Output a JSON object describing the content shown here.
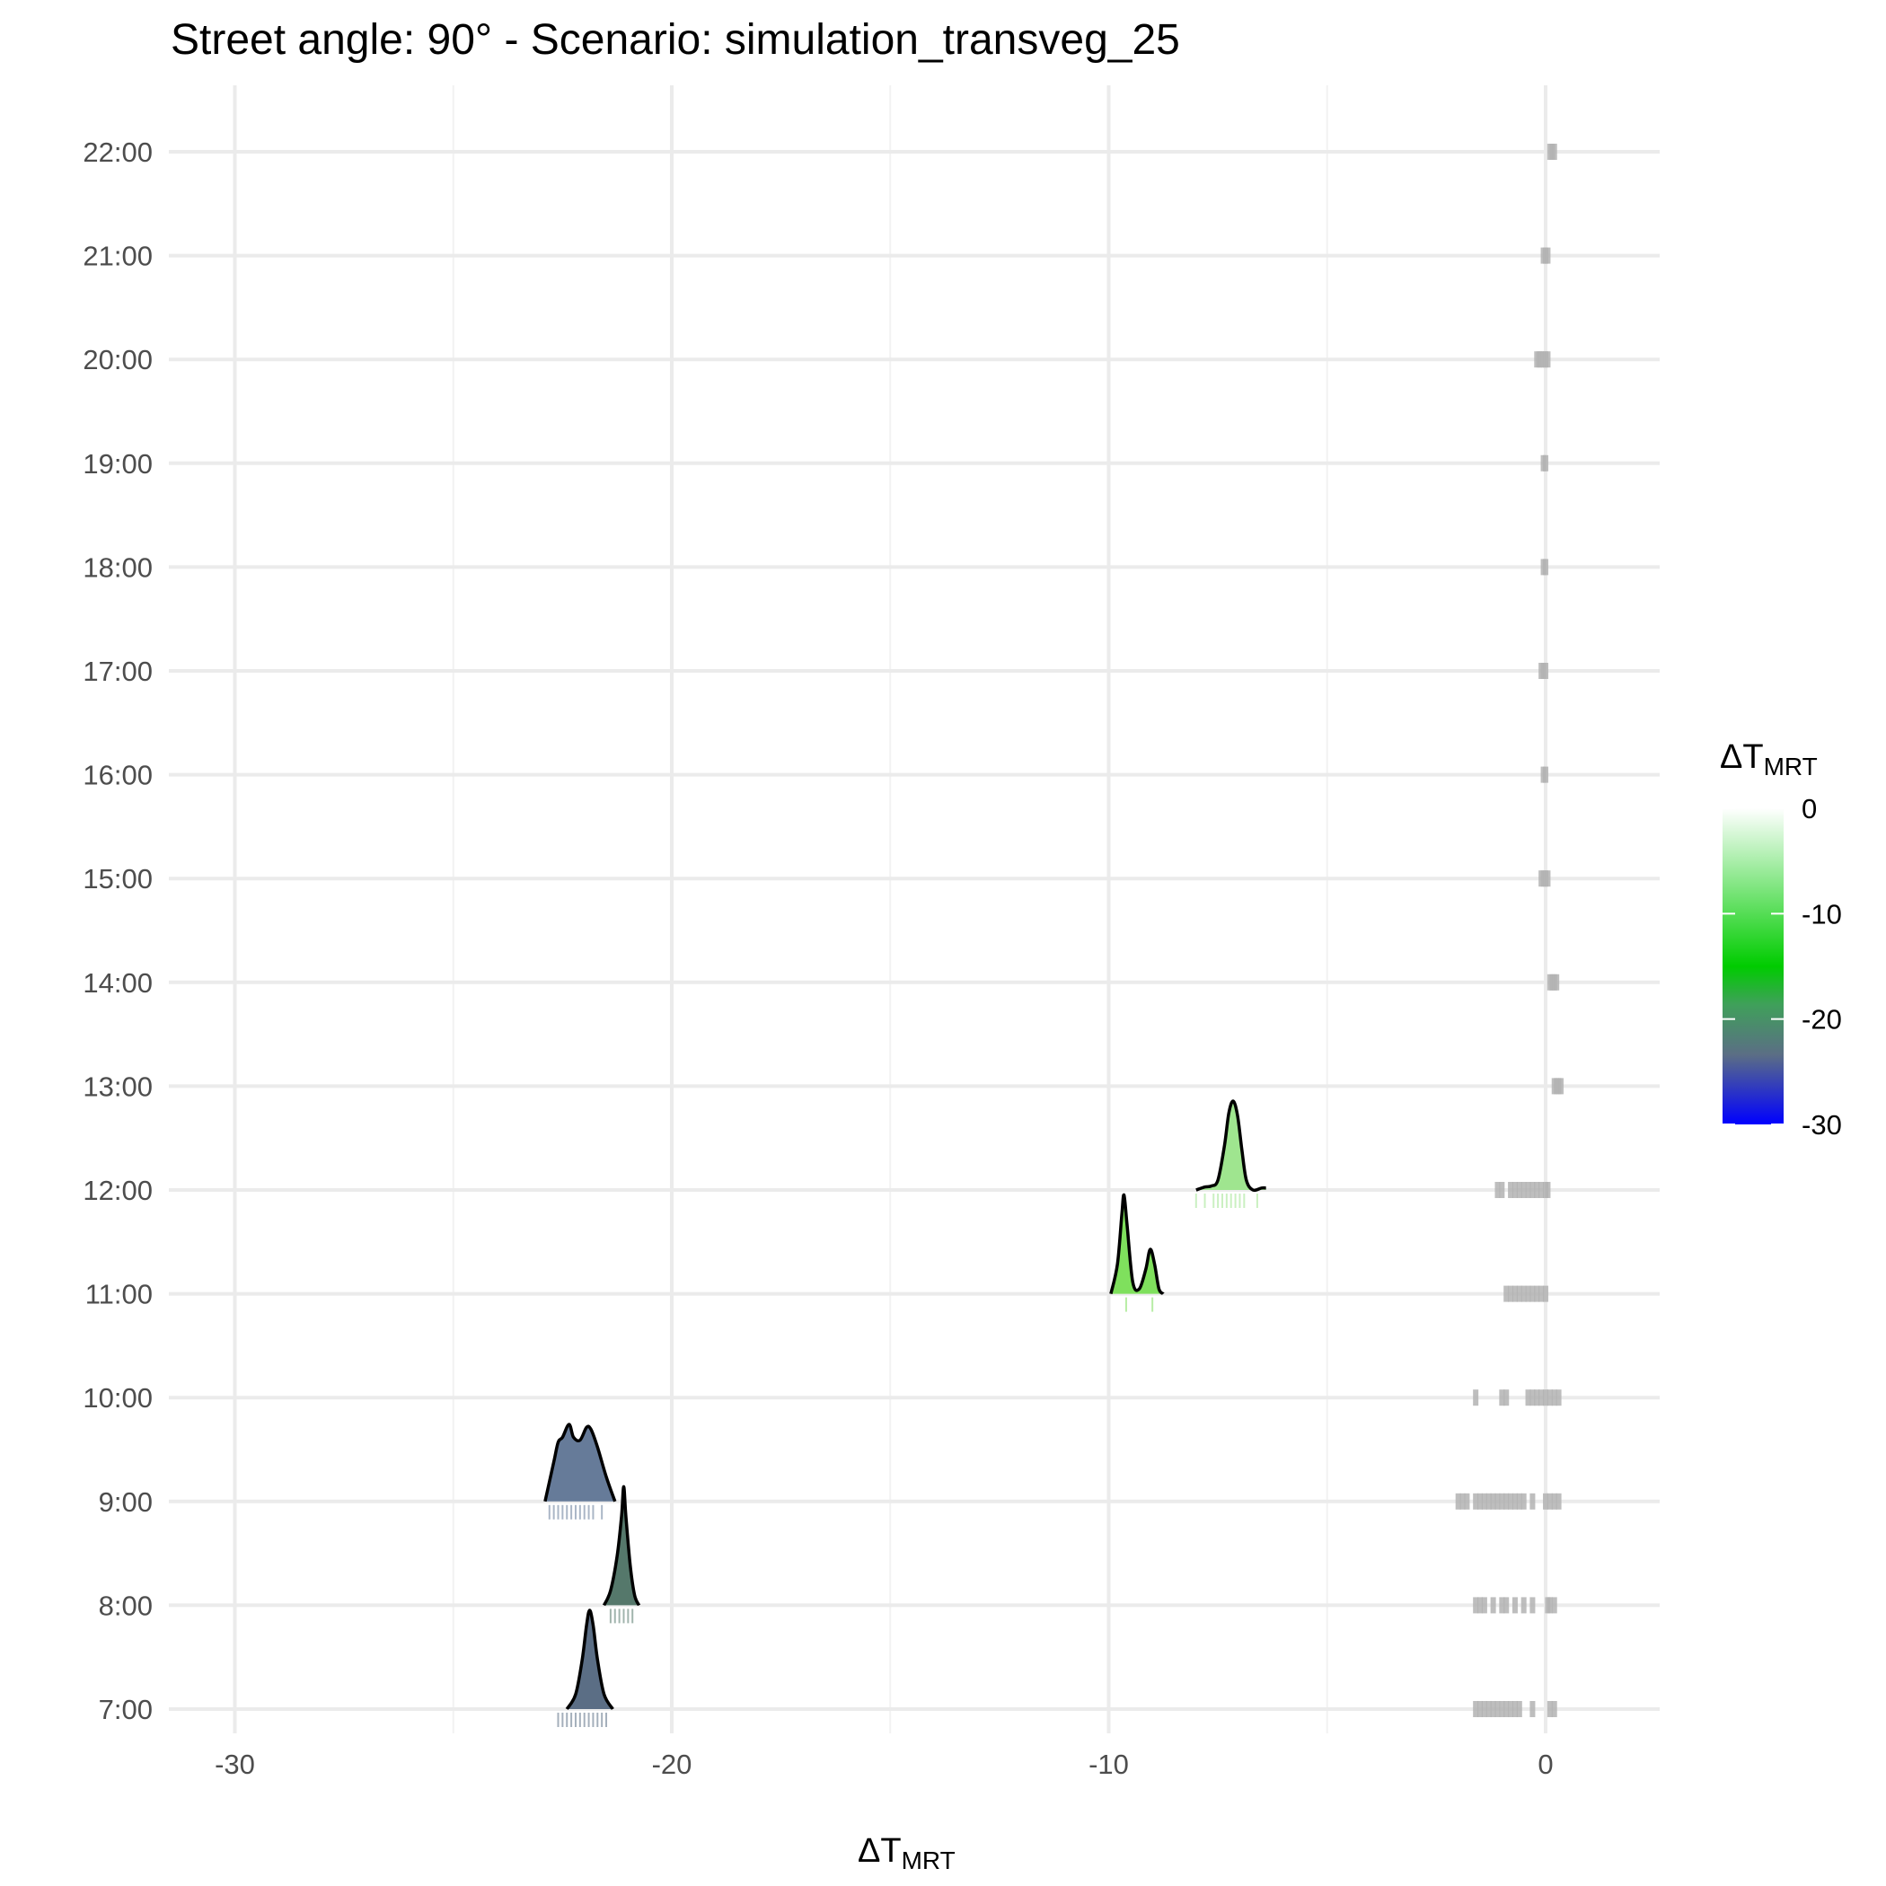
{
  "chart_data": {
    "type": "ridgeline",
    "title": "Street angle: 90° - Scenario: simulation_transveg_25",
    "xlabel": {
      "main": "ΔT",
      "sub": "MRT"
    },
    "ylabel": "",
    "xlim": [
      -31.5,
      2.5
    ],
    "x_ticks": [
      -30,
      -20,
      -10,
      0
    ],
    "x_tick_labels": [
      "-30",
      "-20",
      "-10",
      "0"
    ],
    "categories": [
      "7:00",
      "8:00",
      "9:00",
      "10:00",
      "11:00",
      "12:00",
      "13:00",
      "14:00",
      "15:00",
      "16:00",
      "17:00",
      "18:00",
      "19:00",
      "20:00",
      "21:00",
      "22:00"
    ],
    "legend": {
      "title": {
        "main": "ΔT",
        "sub": "MRT"
      },
      "position": "right",
      "range": [
        -30,
        0
      ],
      "ticks": [
        0,
        -10,
        -20,
        -30
      ],
      "tick_labels": [
        "0",
        "-10",
        "-20",
        "-30"
      ],
      "colors": {
        "0": "#ffffff",
        "-15": "#00cc00",
        "-30": "#0000ff"
      }
    },
    "grid": true,
    "series": [
      {
        "hour": "7:00",
        "group": "vegetation",
        "fill": "#5b6e85",
        "density_points": [
          [
            -22.4,
            0
          ],
          [
            -22.2,
            0.15
          ],
          [
            -22.05,
            0.5
          ],
          [
            -21.95,
            0.85
          ],
          [
            -21.88,
            1.0
          ],
          [
            -21.8,
            0.85
          ],
          [
            -21.7,
            0.5
          ],
          [
            -21.55,
            0.15
          ],
          [
            -21.35,
            0
          ]
        ],
        "rug": [
          -22.6,
          -22.5,
          -22.4,
          -22.3,
          -22.2,
          -22.1,
          -22.0,
          -21.9,
          -21.8,
          -21.7,
          -21.6,
          -21.5
        ]
      },
      {
        "hour": "8:00",
        "group": "vegetation",
        "fill": "#55786b",
        "density_points": [
          [
            -21.55,
            0
          ],
          [
            -21.4,
            0.15
          ],
          [
            -21.25,
            0.5
          ],
          [
            -21.15,
            0.9
          ],
          [
            -21.1,
            1.2
          ],
          [
            -21.05,
            0.9
          ],
          [
            -20.95,
            0.4
          ],
          [
            -20.85,
            0.1
          ],
          [
            -20.75,
            0
          ]
        ],
        "rug": [
          -21.4,
          -21.3,
          -21.2,
          -21.1,
          -21.0,
          -20.9
        ]
      },
      {
        "hour": "9:00",
        "group": "vegetation",
        "fill": "#667b99",
        "density_points": [
          [
            -22.9,
            0
          ],
          [
            -22.7,
            0.4
          ],
          [
            -22.6,
            0.6
          ],
          [
            -22.5,
            0.65
          ],
          [
            -22.35,
            0.78
          ],
          [
            -22.25,
            0.65
          ],
          [
            -22.1,
            0.62
          ],
          [
            -21.95,
            0.75
          ],
          [
            -21.85,
            0.73
          ],
          [
            -21.7,
            0.55
          ],
          [
            -21.5,
            0.25
          ],
          [
            -21.3,
            0
          ]
        ],
        "rug": [
          -22.8,
          -22.7,
          -22.6,
          -22.5,
          -22.4,
          -22.3,
          -22.2,
          -22.1,
          -22.0,
          -21.9,
          -21.8,
          -21.6
        ]
      },
      {
        "hour": "11:00",
        "group": "vegetation",
        "fill": "#7fe05d",
        "density_points": [
          [
            -9.95,
            0
          ],
          [
            -9.8,
            0.3
          ],
          [
            -9.7,
            0.8
          ],
          [
            -9.65,
            1.0
          ],
          [
            -9.58,
            0.7
          ],
          [
            -9.45,
            0.12
          ],
          [
            -9.3,
            0.05
          ],
          [
            -9.15,
            0.25
          ],
          [
            -9.05,
            0.45
          ],
          [
            -8.95,
            0.3
          ],
          [
            -8.85,
            0.05
          ],
          [
            -8.75,
            0
          ]
        ],
        "rug": [
          -9.6,
          -9.0
        ]
      },
      {
        "hour": "12:00",
        "group": "vegetation",
        "fill": "#9fe58f",
        "density_points": [
          [
            -8.0,
            0
          ],
          [
            -7.8,
            0.03
          ],
          [
            -7.65,
            0.04
          ],
          [
            -7.5,
            0.1
          ],
          [
            -7.35,
            0.45
          ],
          [
            -7.25,
            0.78
          ],
          [
            -7.15,
            0.9
          ],
          [
            -7.05,
            0.75
          ],
          [
            -6.95,
            0.4
          ],
          [
            -6.85,
            0.1
          ],
          [
            -6.7,
            0
          ],
          [
            -6.5,
            0.02
          ],
          [
            -6.4,
            0.02
          ]
        ],
        "rug": [
          -8.0,
          -7.8,
          -7.6,
          -7.5,
          -7.4,
          -7.3,
          -7.2,
          -7.1,
          -7.0,
          -6.9,
          -6.6
        ]
      }
    ],
    "baseline_rugs": [
      {
        "hour": "7:00",
        "values": [
          -1.6,
          -1.5,
          -1.4,
          -1.3,
          -1.2,
          -1.1,
          -1.0,
          -0.9,
          -0.8,
          -0.7,
          -0.6,
          -0.3,
          0.1,
          0.2
        ]
      },
      {
        "hour": "8:00",
        "values": [
          -1.6,
          -1.5,
          -1.4,
          -1.2,
          -1.0,
          -0.9,
          -0.7,
          -0.5,
          -0.3,
          0.05,
          0.1,
          0.2
        ]
      },
      {
        "hour": "9:00",
        "values": [
          -2.0,
          -1.9,
          -1.8,
          -1.6,
          -1.5,
          -1.4,
          -1.3,
          -1.2,
          -1.1,
          -1.0,
          -0.9,
          -0.8,
          -0.7,
          -0.6,
          -0.5,
          -0.3,
          0.0,
          0.1,
          0.2,
          0.3
        ]
      },
      {
        "hour": "10:00",
        "values": [
          -1.6,
          -1.0,
          -0.9,
          -0.4,
          -0.3,
          -0.2,
          -0.1,
          0.0,
          0.1,
          0.2,
          0.3
        ]
      },
      {
        "hour": "11:00",
        "values": [
          -0.9,
          -0.8,
          -0.7,
          -0.6,
          -0.5,
          -0.4,
          -0.3,
          -0.2,
          -0.1,
          0.0
        ]
      },
      {
        "hour": "12:00",
        "values": [
          -1.1,
          -1.0,
          -0.8,
          -0.7,
          -0.6,
          -0.5,
          -0.4,
          -0.3,
          -0.2,
          -0.1,
          0.0,
          0.05
        ]
      },
      {
        "hour": "13:00",
        "values": [
          0.2,
          0.25,
          0.3,
          0.35
        ]
      },
      {
        "hour": "14:00",
        "values": [
          0.1,
          0.15,
          0.2,
          0.25
        ]
      },
      {
        "hour": "15:00",
        "values": [
          -0.1,
          -0.05,
          0.0,
          0.05
        ]
      },
      {
        "hour": "16:00",
        "values": [
          -0.05,
          0.0
        ]
      },
      {
        "hour": "17:00",
        "values": [
          -0.1,
          -0.05,
          0.0
        ]
      },
      {
        "hour": "18:00",
        "values": [
          -0.05,
          0.0
        ]
      },
      {
        "hour": "19:00",
        "values": [
          -0.05,
          0.0
        ]
      },
      {
        "hour": "20:00",
        "values": [
          -0.2,
          -0.15,
          -0.1,
          -0.05,
          0.0,
          0.05
        ]
      },
      {
        "hour": "21:00",
        "values": [
          -0.05,
          0.0,
          0.05
        ]
      },
      {
        "hour": "22:00",
        "values": [
          0.1,
          0.15,
          0.2
        ]
      }
    ]
  }
}
